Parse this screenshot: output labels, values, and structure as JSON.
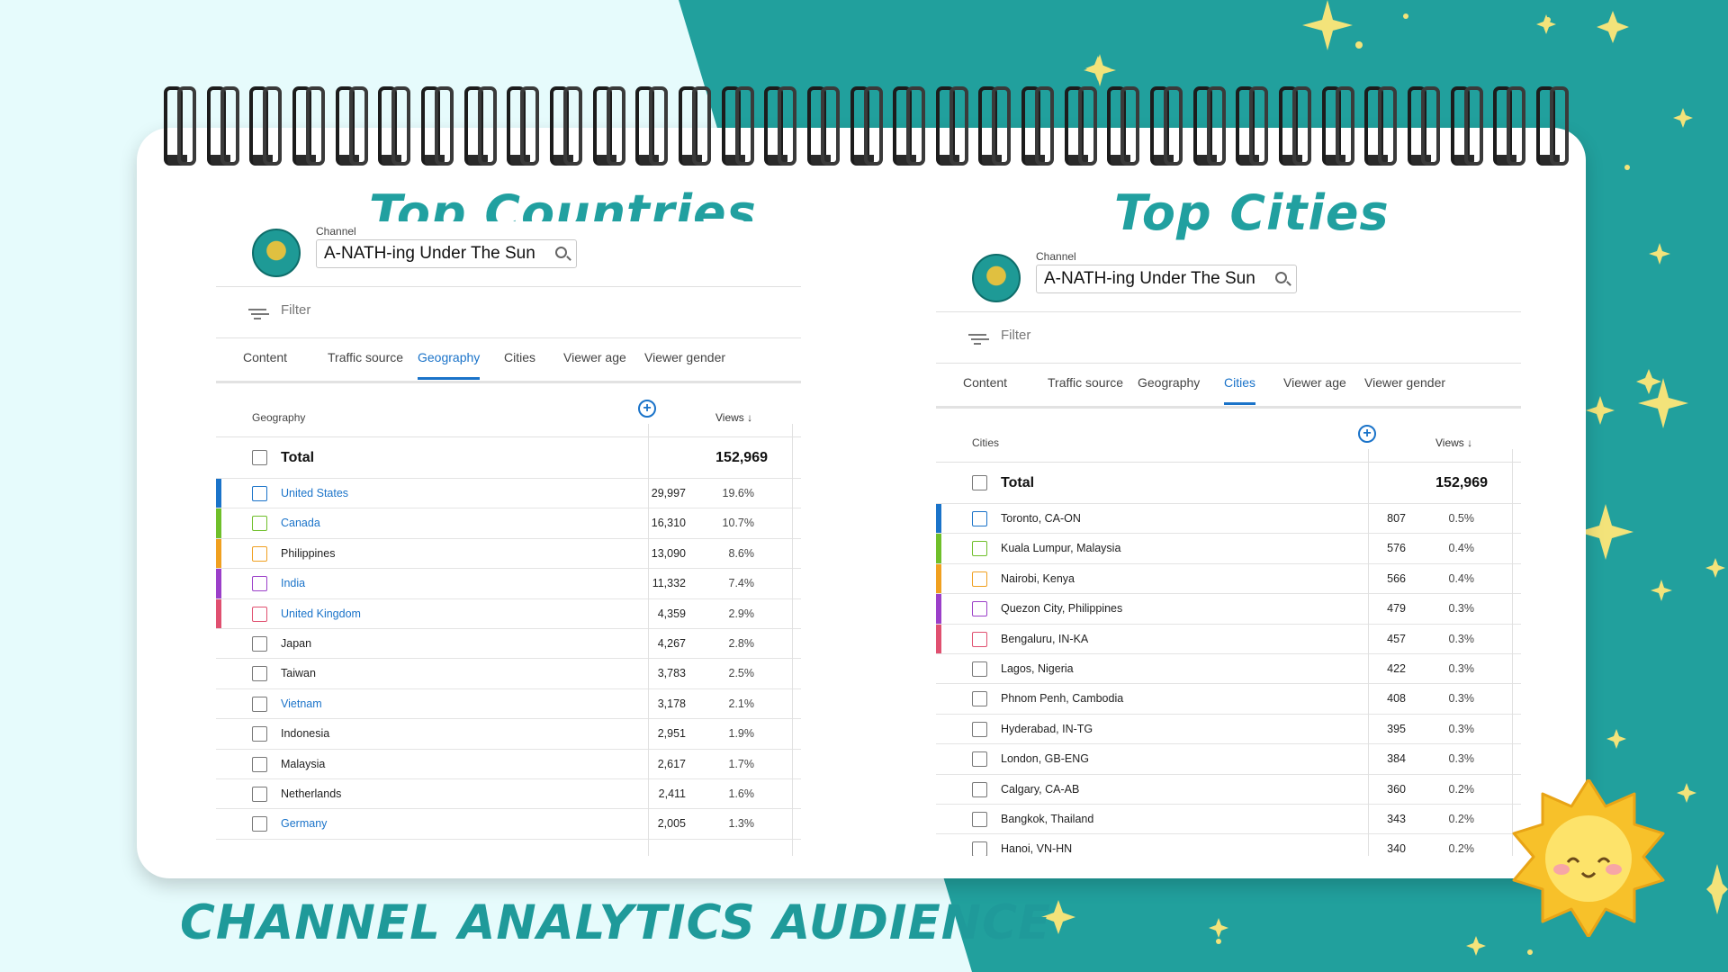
{
  "headings": {
    "countries": "Top  Countries",
    "cities": "Top Cities"
  },
  "footer_title": "CHANNEL ANALYTICS AUDIENCE",
  "colors": {
    "teal": "#21a0a0",
    "bg_light": "#e6fbfc",
    "bg_teal": "#21a09d",
    "link": "#1a73c9",
    "star": "#f3e37a"
  },
  "row_colors": [
    "#1a73c9",
    "#6fbf2a",
    "#f0a020",
    "#9b3fc9",
    "#e05070"
  ],
  "panels": [
    {
      "channel_label": "Channel",
      "channel_name": "A-NATH-ing Under The Sun",
      "filter_placeholder": "Filter",
      "tabs": [
        "Content",
        "Traffic source",
        "Geography",
        "Cities",
        "Viewer age",
        "Viewer gender"
      ],
      "active_tab": "Geography",
      "dimension": "Geography",
      "metric": "Views ↓",
      "total_label": "Total",
      "total_value": "152,969",
      "rows": [
        {
          "label": "United States",
          "views": "29,997",
          "pct": "19.6%",
          "link": true
        },
        {
          "label": "Canada",
          "views": "16,310",
          "pct": "10.7%",
          "link": true
        },
        {
          "label": "Philippines",
          "views": "13,090",
          "pct": "8.6%",
          "link": false
        },
        {
          "label": "India",
          "views": "11,332",
          "pct": "7.4%",
          "link": true
        },
        {
          "label": "United Kingdom",
          "views": "4,359",
          "pct": "2.9%",
          "link": true
        },
        {
          "label": "Japan",
          "views": "4,267",
          "pct": "2.8%",
          "link": false
        },
        {
          "label": "Taiwan",
          "views": "3,783",
          "pct": "2.5%",
          "link": false
        },
        {
          "label": "Vietnam",
          "views": "3,178",
          "pct": "2.1%",
          "link": true
        },
        {
          "label": "Indonesia",
          "views": "2,951",
          "pct": "1.9%",
          "link": false
        },
        {
          "label": "Malaysia",
          "views": "2,617",
          "pct": "1.7%",
          "link": false
        },
        {
          "label": "Netherlands",
          "views": "2,411",
          "pct": "1.6%",
          "link": false
        },
        {
          "label": "Germany",
          "views": "2,005",
          "pct": "1.3%",
          "link": true
        }
      ]
    },
    {
      "channel_label": "Channel",
      "channel_name": "A-NATH-ing Under The Sun",
      "filter_placeholder": "Filter",
      "tabs": [
        "Content",
        "Traffic source",
        "Geography",
        "Cities",
        "Viewer age",
        "Viewer gender"
      ],
      "active_tab": "Cities",
      "dimension": "Cities",
      "metric": "Views ↓",
      "total_label": "Total",
      "total_value": "152,969",
      "rows": [
        {
          "label": "Toronto, CA-ON",
          "views": "807",
          "pct": "0.5%",
          "link": false
        },
        {
          "label": "Kuala Lumpur, Malaysia",
          "views": "576",
          "pct": "0.4%",
          "link": false
        },
        {
          "label": "Nairobi, Kenya",
          "views": "566",
          "pct": "0.4%",
          "link": false
        },
        {
          "label": "Quezon City, Philippines",
          "views": "479",
          "pct": "0.3%",
          "link": false
        },
        {
          "label": "Bengaluru, IN-KA",
          "views": "457",
          "pct": "0.3%",
          "link": false
        },
        {
          "label": "Lagos, Nigeria",
          "views": "422",
          "pct": "0.3%",
          "link": false
        },
        {
          "label": "Phnom Penh, Cambodia",
          "views": "408",
          "pct": "0.3%",
          "link": false
        },
        {
          "label": "Hyderabad, IN-TG",
          "views": "395",
          "pct": "0.3%",
          "link": false
        },
        {
          "label": "London, GB-ENG",
          "views": "384",
          "pct": "0.3%",
          "link": false
        },
        {
          "label": "Calgary, CA-AB",
          "views": "360",
          "pct": "0.2%",
          "link": false
        },
        {
          "label": "Bangkok, Thailand",
          "views": "343",
          "pct": "0.2%",
          "link": false
        },
        {
          "label": "Hanoi, VN-HN",
          "views": "340",
          "pct": "0.2%",
          "link": false
        }
      ]
    }
  ]
}
